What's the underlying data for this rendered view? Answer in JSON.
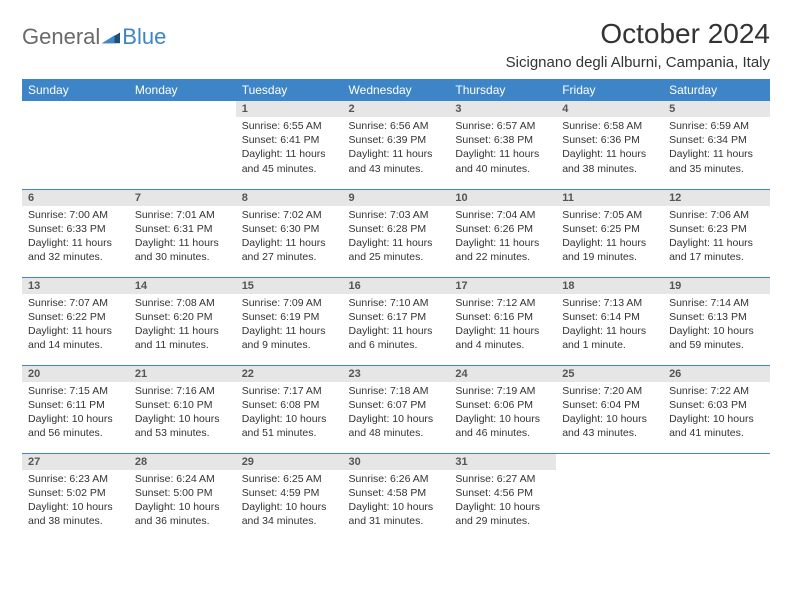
{
  "logo": {
    "general": "General",
    "blue": "Blue"
  },
  "title": "October 2024",
  "location": "Sicignano degli Alburni, Campania, Italy",
  "colors": {
    "header_bg": "#3d85c6",
    "header_fg": "#ffffff",
    "daynum_bg": "#e6e6e6",
    "rule": "#3d85c6",
    "text": "#333333"
  },
  "weekdays": [
    "Sunday",
    "Monday",
    "Tuesday",
    "Wednesday",
    "Thursday",
    "Friday",
    "Saturday"
  ],
  "weeks": [
    [
      {
        "n": "",
        "sr": "",
        "ss": "",
        "dl": ""
      },
      {
        "n": "",
        "sr": "",
        "ss": "",
        "dl": ""
      },
      {
        "n": "1",
        "sr": "Sunrise: 6:55 AM",
        "ss": "Sunset: 6:41 PM",
        "dl": "Daylight: 11 hours and 45 minutes."
      },
      {
        "n": "2",
        "sr": "Sunrise: 6:56 AM",
        "ss": "Sunset: 6:39 PM",
        "dl": "Daylight: 11 hours and 43 minutes."
      },
      {
        "n": "3",
        "sr": "Sunrise: 6:57 AM",
        "ss": "Sunset: 6:38 PM",
        "dl": "Daylight: 11 hours and 40 minutes."
      },
      {
        "n": "4",
        "sr": "Sunrise: 6:58 AM",
        "ss": "Sunset: 6:36 PM",
        "dl": "Daylight: 11 hours and 38 minutes."
      },
      {
        "n": "5",
        "sr": "Sunrise: 6:59 AM",
        "ss": "Sunset: 6:34 PM",
        "dl": "Daylight: 11 hours and 35 minutes."
      }
    ],
    [
      {
        "n": "6",
        "sr": "Sunrise: 7:00 AM",
        "ss": "Sunset: 6:33 PM",
        "dl": "Daylight: 11 hours and 32 minutes."
      },
      {
        "n": "7",
        "sr": "Sunrise: 7:01 AM",
        "ss": "Sunset: 6:31 PM",
        "dl": "Daylight: 11 hours and 30 minutes."
      },
      {
        "n": "8",
        "sr": "Sunrise: 7:02 AM",
        "ss": "Sunset: 6:30 PM",
        "dl": "Daylight: 11 hours and 27 minutes."
      },
      {
        "n": "9",
        "sr": "Sunrise: 7:03 AM",
        "ss": "Sunset: 6:28 PM",
        "dl": "Daylight: 11 hours and 25 minutes."
      },
      {
        "n": "10",
        "sr": "Sunrise: 7:04 AM",
        "ss": "Sunset: 6:26 PM",
        "dl": "Daylight: 11 hours and 22 minutes."
      },
      {
        "n": "11",
        "sr": "Sunrise: 7:05 AM",
        "ss": "Sunset: 6:25 PM",
        "dl": "Daylight: 11 hours and 19 minutes."
      },
      {
        "n": "12",
        "sr": "Sunrise: 7:06 AM",
        "ss": "Sunset: 6:23 PM",
        "dl": "Daylight: 11 hours and 17 minutes."
      }
    ],
    [
      {
        "n": "13",
        "sr": "Sunrise: 7:07 AM",
        "ss": "Sunset: 6:22 PM",
        "dl": "Daylight: 11 hours and 14 minutes."
      },
      {
        "n": "14",
        "sr": "Sunrise: 7:08 AM",
        "ss": "Sunset: 6:20 PM",
        "dl": "Daylight: 11 hours and 11 minutes."
      },
      {
        "n": "15",
        "sr": "Sunrise: 7:09 AM",
        "ss": "Sunset: 6:19 PM",
        "dl": "Daylight: 11 hours and 9 minutes."
      },
      {
        "n": "16",
        "sr": "Sunrise: 7:10 AM",
        "ss": "Sunset: 6:17 PM",
        "dl": "Daylight: 11 hours and 6 minutes."
      },
      {
        "n": "17",
        "sr": "Sunrise: 7:12 AM",
        "ss": "Sunset: 6:16 PM",
        "dl": "Daylight: 11 hours and 4 minutes."
      },
      {
        "n": "18",
        "sr": "Sunrise: 7:13 AM",
        "ss": "Sunset: 6:14 PM",
        "dl": "Daylight: 11 hours and 1 minute."
      },
      {
        "n": "19",
        "sr": "Sunrise: 7:14 AM",
        "ss": "Sunset: 6:13 PM",
        "dl": "Daylight: 10 hours and 59 minutes."
      }
    ],
    [
      {
        "n": "20",
        "sr": "Sunrise: 7:15 AM",
        "ss": "Sunset: 6:11 PM",
        "dl": "Daylight: 10 hours and 56 minutes."
      },
      {
        "n": "21",
        "sr": "Sunrise: 7:16 AM",
        "ss": "Sunset: 6:10 PM",
        "dl": "Daylight: 10 hours and 53 minutes."
      },
      {
        "n": "22",
        "sr": "Sunrise: 7:17 AM",
        "ss": "Sunset: 6:08 PM",
        "dl": "Daylight: 10 hours and 51 minutes."
      },
      {
        "n": "23",
        "sr": "Sunrise: 7:18 AM",
        "ss": "Sunset: 6:07 PM",
        "dl": "Daylight: 10 hours and 48 minutes."
      },
      {
        "n": "24",
        "sr": "Sunrise: 7:19 AM",
        "ss": "Sunset: 6:06 PM",
        "dl": "Daylight: 10 hours and 46 minutes."
      },
      {
        "n": "25",
        "sr": "Sunrise: 7:20 AM",
        "ss": "Sunset: 6:04 PM",
        "dl": "Daylight: 10 hours and 43 minutes."
      },
      {
        "n": "26",
        "sr": "Sunrise: 7:22 AM",
        "ss": "Sunset: 6:03 PM",
        "dl": "Daylight: 10 hours and 41 minutes."
      }
    ],
    [
      {
        "n": "27",
        "sr": "Sunrise: 6:23 AM",
        "ss": "Sunset: 5:02 PM",
        "dl": "Daylight: 10 hours and 38 minutes."
      },
      {
        "n": "28",
        "sr": "Sunrise: 6:24 AM",
        "ss": "Sunset: 5:00 PM",
        "dl": "Daylight: 10 hours and 36 minutes."
      },
      {
        "n": "29",
        "sr": "Sunrise: 6:25 AM",
        "ss": "Sunset: 4:59 PM",
        "dl": "Daylight: 10 hours and 34 minutes."
      },
      {
        "n": "30",
        "sr": "Sunrise: 6:26 AM",
        "ss": "Sunset: 4:58 PM",
        "dl": "Daylight: 10 hours and 31 minutes."
      },
      {
        "n": "31",
        "sr": "Sunrise: 6:27 AM",
        "ss": "Sunset: 4:56 PM",
        "dl": "Daylight: 10 hours and 29 minutes."
      },
      {
        "n": "",
        "sr": "",
        "ss": "",
        "dl": ""
      },
      {
        "n": "",
        "sr": "",
        "ss": "",
        "dl": ""
      }
    ]
  ]
}
